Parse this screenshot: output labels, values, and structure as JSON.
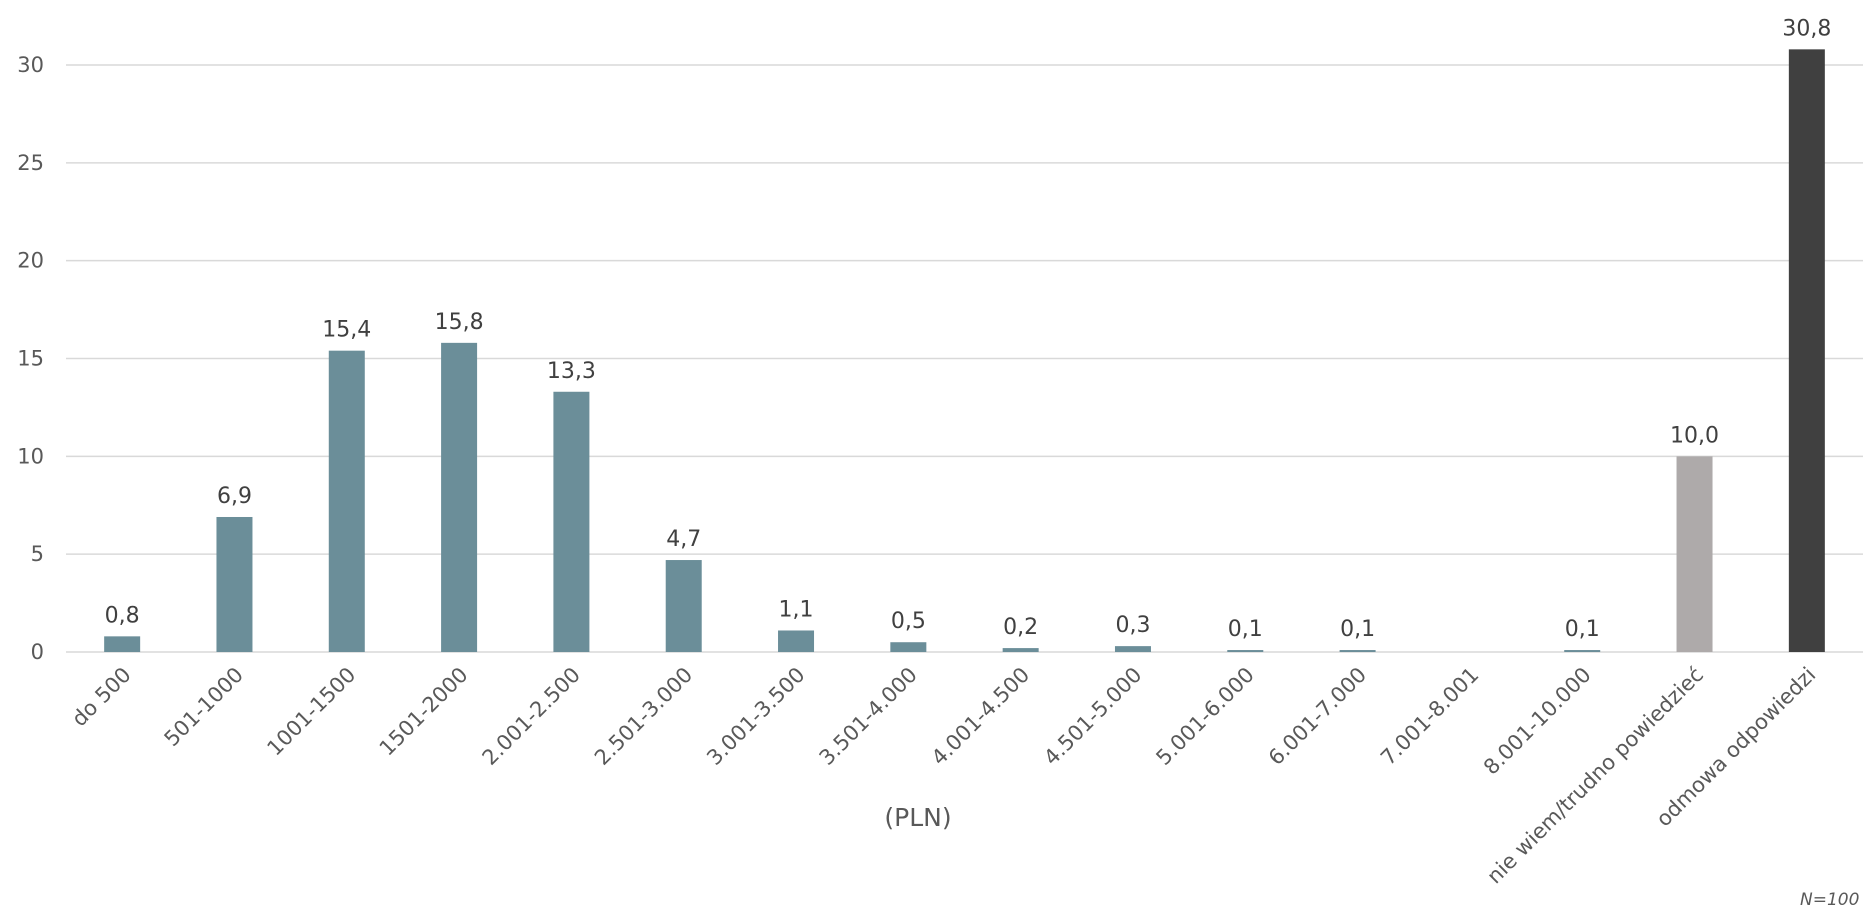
{
  "chart_data": {
    "type": "bar",
    "categories": [
      "do 500",
      "501-1000",
      "1001-1500",
      "1501-2000",
      "2.001-2.500",
      "2.501-3.000",
      "3.001-3.500",
      "3.501-4.000",
      "4.001-4.500",
      "4.501-5.000",
      "5.001-6.000",
      "6.001-7.000",
      "7.001-8.001",
      "8.001-10.000",
      "nie wiem/trudno powiedzieć",
      "odmowa odpowiedzi"
    ],
    "values": [
      0.8,
      6.9,
      15.4,
      15.8,
      13.3,
      4.7,
      1.1,
      0.5,
      0.2,
      0.3,
      0.1,
      0.1,
      null,
      0.1,
      10.0,
      30.8
    ],
    "data_labels": [
      "0,8",
      "6,9",
      "15,4",
      "15,8",
      "13,3",
      "4,7",
      "1,1",
      "0,5",
      "0,2",
      "0,3",
      "0,1",
      "0,1",
      "",
      "0,1",
      "10,0",
      "30,8"
    ],
    "bar_colors": [
      "#6b8e99",
      "#6b8e99",
      "#6b8e99",
      "#6b8e99",
      "#6b8e99",
      "#6b8e99",
      "#6b8e99",
      "#6b8e99",
      "#6b8e99",
      "#6b8e99",
      "#6b8e99",
      "#6b8e99",
      "#6b8e99",
      "#6b8e99",
      "#aeaaaa",
      "#404040"
    ],
    "xlabel": "(PLN)",
    "ylabel": "",
    "title": "",
    "ylim": [
      0,
      30
    ],
    "yticks": [
      "0",
      "5",
      "10",
      "15",
      "20",
      "25",
      "30"
    ],
    "grid": true,
    "legend": "none",
    "note": "N=100"
  }
}
